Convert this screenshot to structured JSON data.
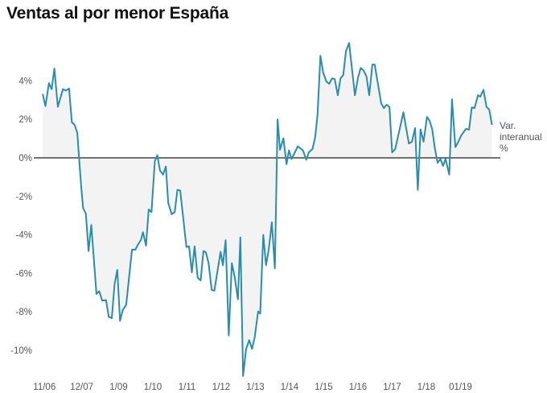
{
  "chart_data": {
    "type": "area",
    "title": "Ventas al por menor España",
    "xlabel": "",
    "ylabel": "",
    "series_label": "Var. interanual %",
    "ylim": [
      -11.5,
      6
    ],
    "yticks": [
      {
        "value": 4,
        "label": "4%"
      },
      {
        "value": 2,
        "label": "2%"
      },
      {
        "value": 0,
        "label": "0%"
      },
      {
        "value": -2,
        "label": "-2%"
      },
      {
        "value": -4,
        "label": "-4%"
      },
      {
        "value": -6,
        "label": "-6%"
      },
      {
        "value": -8,
        "label": "-8%"
      },
      {
        "value": -10,
        "label": "-10%"
      }
    ],
    "xticks": [
      {
        "value": 2006.83,
        "label": "11/06"
      },
      {
        "value": 2007.92,
        "label": "12/07"
      },
      {
        "value": 2009.0,
        "label": "1/09"
      },
      {
        "value": 2010.0,
        "label": "1/10"
      },
      {
        "value": 2011.0,
        "label": "1/11"
      },
      {
        "value": 2012.0,
        "label": "1/12"
      },
      {
        "value": 2013.0,
        "label": "1/13"
      },
      {
        "value": 2014.0,
        "label": "1/14"
      },
      {
        "value": 2015.0,
        "label": "1/15"
      },
      {
        "value": 2016.0,
        "label": "1/16"
      },
      {
        "value": 2017.0,
        "label": "1/17"
      },
      {
        "value": 2018.0,
        "label": "1/18"
      },
      {
        "value": 2019.0,
        "label": "01/19"
      }
    ],
    "grid": false,
    "colors": {
      "line": "#2b8cab",
      "area": "#f3f3f3",
      "zero_line": "#444444"
    },
    "x": [
      2006.78,
      2006.86,
      2006.96,
      2007.04,
      2007.12,
      2007.22,
      2007.37,
      2007.45,
      2007.55,
      2007.63,
      2007.71,
      2007.79,
      2007.84,
      2007.9,
      2007.96,
      2008.04,
      2008.12,
      2008.2,
      2008.35,
      2008.43,
      2008.52,
      2008.63,
      2008.71,
      2008.8,
      2008.88,
      2008.96,
      2009.04,
      2009.12,
      2009.22,
      2009.39,
      2009.49,
      2009.57,
      2009.65,
      2009.71,
      2009.8,
      2009.88,
      2009.96,
      2010.06,
      2010.13,
      2010.21,
      2010.3,
      2010.38,
      2010.45,
      2010.55,
      2010.64,
      2010.72,
      2010.8,
      2010.98,
      2011.06,
      2011.14,
      2011.22,
      2011.31,
      2011.4,
      2011.48,
      2011.55,
      2011.63,
      2011.72,
      2011.8,
      2011.98,
      2012.05,
      2012.13,
      2012.22,
      2012.31,
      2012.39,
      2012.49,
      2012.56,
      2012.64,
      2012.73,
      2012.82,
      2012.9,
      2012.98,
      2013.08,
      2013.14,
      2013.23,
      2013.31,
      2013.39,
      2013.48,
      2013.57,
      2013.65,
      2013.72,
      2013.82,
      2013.91,
      2013.98,
      2014.06,
      2014.24,
      2014.39,
      2014.49,
      2014.56,
      2014.67,
      2014.75,
      2014.82,
      2014.9,
      2014.98,
      2015.08,
      2015.16,
      2015.24,
      2015.32,
      2015.41,
      2015.49,
      2015.57,
      2015.65,
      2015.74,
      2015.91,
      2016.0,
      2016.08,
      2016.16,
      2016.25,
      2016.33,
      2016.42,
      2016.49,
      2016.68,
      2016.76,
      2016.84,
      2016.92,
      2017.0,
      2017.09,
      2017.33,
      2017.49,
      2017.58,
      2017.67,
      2017.75,
      2017.83,
      2017.92,
      2018.02,
      2018.09,
      2018.17,
      2018.25,
      2018.33,
      2018.41,
      2018.49,
      2018.56,
      2018.67,
      2018.75,
      2018.85,
      2018.92,
      2019.02,
      2019.16,
      2019.25,
      2019.33,
      2019.41,
      2019.51,
      2019.58,
      2019.67,
      2019.76,
      2019.84,
      2019.92
    ],
    "values": [
      3.32,
      2.69,
      3.88,
      3.57,
      4.64,
      2.65,
      3.57,
      3.5,
      3.6,
      1.85,
      1.72,
      1.3,
      0.04,
      -1.42,
      -2.61,
      -2.89,
      -4.84,
      -3.49,
      -7.07,
      -6.93,
      -7.42,
      -7.39,
      -8.26,
      -8.33,
      -6.58,
      -5.82,
      -8.47,
      -7.91,
      -7.63,
      -4.77,
      -4.77,
      -4.49,
      -4.28,
      -3.86,
      -4.56,
      -2.68,
      -2.82,
      -0.17,
      0.14,
      -0.66,
      -0.87,
      -0.45,
      -2.33,
      -2.93,
      -2.82,
      -1.66,
      -1.7,
      -4.63,
      -4.6,
      -5.95,
      -4.6,
      -6.23,
      -6.37,
      -4.84,
      -4.91,
      -5.47,
      -6.86,
      -6.9,
      -4.88,
      -5.58,
      -4.28,
      -9.23,
      -5.47,
      -6.16,
      -7.35,
      -4.14,
      -11.33,
      -9.93,
      -9.47,
      -9.93,
      -9.3,
      -7.98,
      -8.09,
      -4.0,
      -5.58,
      -4.77,
      -3.35,
      -5.74,
      2.0,
      0.42,
      1.02,
      -0.33,
      0.39,
      -0.06,
      0.6,
      0.39,
      -0.1,
      0.28,
      0.46,
      1.09,
      2.27,
      5.3,
      4.44,
      3.95,
      3.85,
      4.13,
      4.09,
      3.25,
      4.13,
      4.3,
      5.55,
      5.97,
      3.25,
      4.16,
      4.67,
      4.55,
      4.23,
      3.25,
      4.85,
      4.85,
      2.83,
      2.58,
      2.76,
      2.65,
      0.28,
      0.46,
      2.37,
      0.74,
      0.84,
      1.55,
      -1.66,
      1.48,
      0.84,
      2.13,
      1.95,
      1.51,
      0.5,
      -0.26,
      -0.06,
      -0.42,
      -0.06,
      -0.87,
      3.04,
      0.56,
      0.78,
      1.16,
      1.51,
      1.46,
      2.62,
      2.59,
      3.25,
      3.18,
      3.53,
      2.65,
      2.51,
      1.72
    ]
  }
}
